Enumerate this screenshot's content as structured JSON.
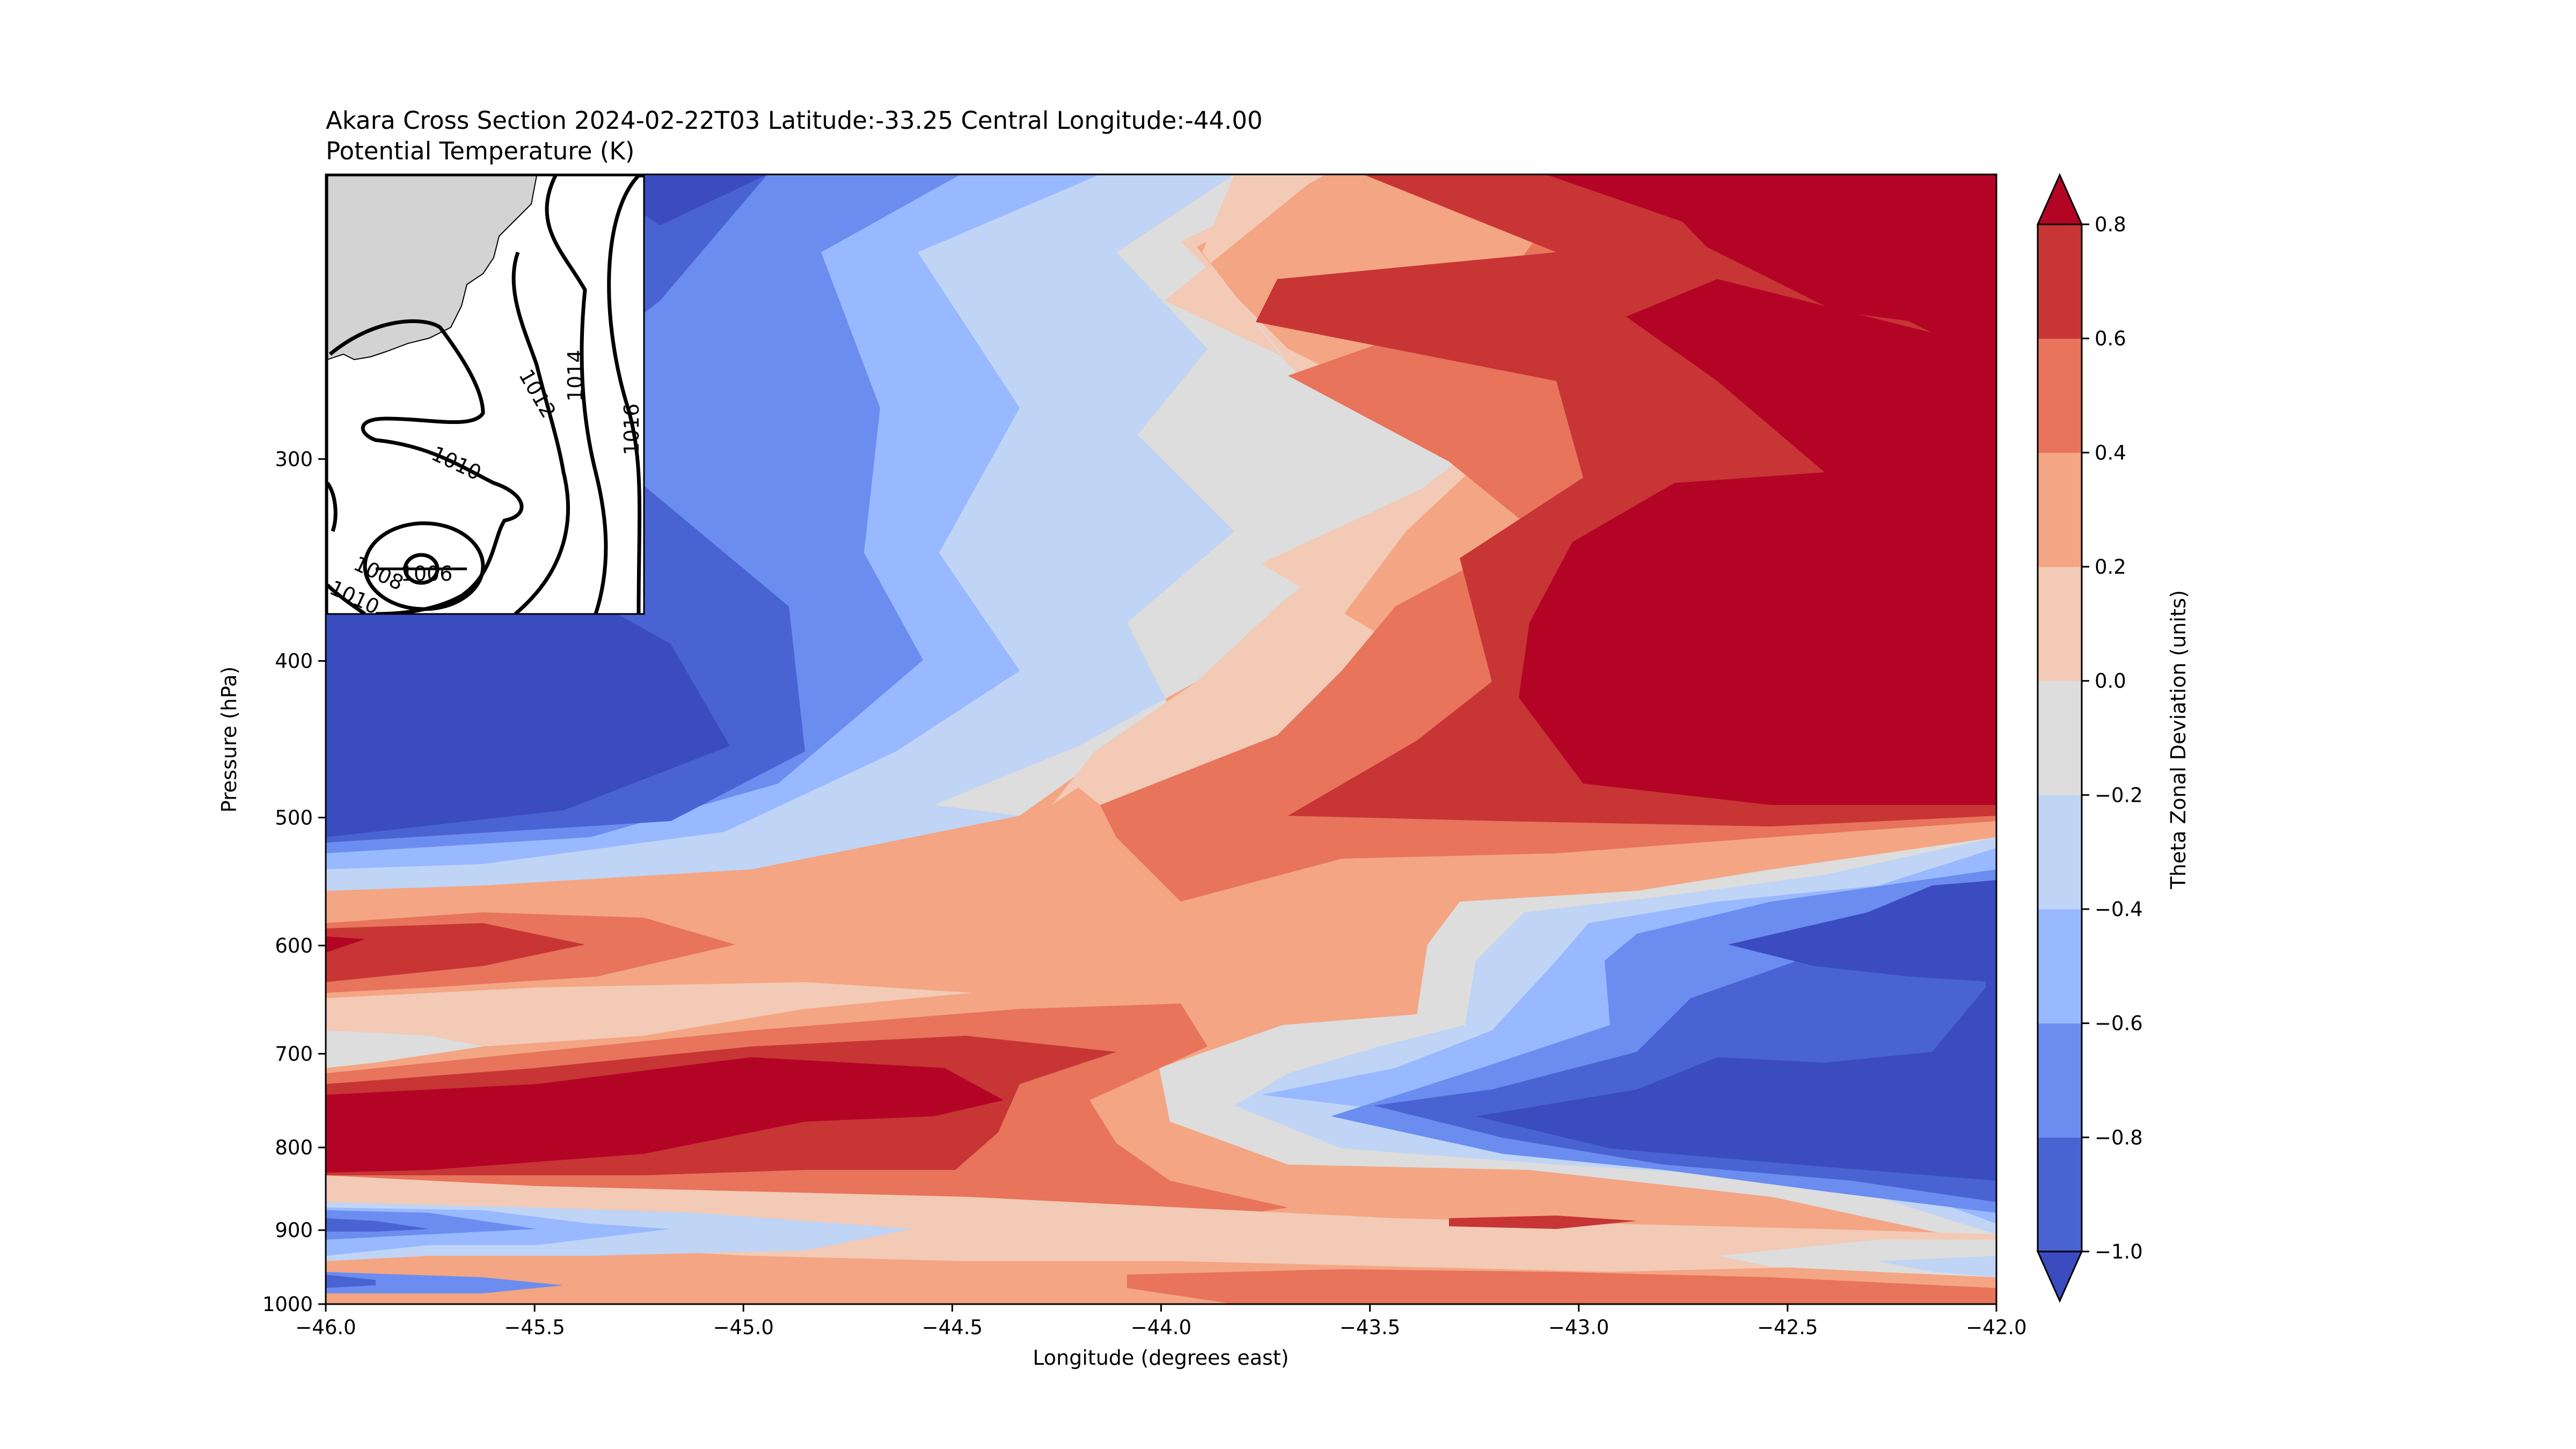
{
  "chart_data": {
    "type": "heatmap",
    "subtype": "filled-contour cross section",
    "title_line1": "Akara Cross Section 2024-02-22T03 Latitude:-33.25 Central Longitude:-44.00",
    "title_line2": "Potential Temperature (K)",
    "xlabel": "Longitude (degrees east)",
    "ylabel": "Pressure (hPa)",
    "xlim": [
      -46.0,
      -42.0
    ],
    "ylim": [
      1000,
      200
    ],
    "y_scale": "log",
    "x_ticks": [
      -46.0,
      -45.5,
      -45.0,
      -44.5,
      -44.0,
      -43.5,
      -43.0,
      -42.5,
      -42.0
    ],
    "x_tick_labels": [
      "−46.0",
      "−45.5",
      "−45.0",
      "−44.5",
      "−44.0",
      "−43.5",
      "−43.0",
      "−42.5",
      "−42.0"
    ],
    "y_ticks": [
      300,
      400,
      500,
      600,
      700,
      800,
      900,
      1000
    ],
    "y_tick_labels": [
      "300",
      "400",
      "500",
      "600",
      "700",
      "800",
      "900",
      "1000"
    ],
    "colorbar": {
      "label": "Theta Zonal Deviation (units)",
      "levels": [
        -1.0,
        -0.8,
        -0.6,
        -0.4,
        -0.2,
        0.0,
        0.2,
        0.4,
        0.6,
        0.8
      ],
      "tick_labels": [
        "−1.0",
        "−0.8",
        "−0.6",
        "−0.4",
        "−0.2",
        "0.0",
        "0.2",
        "0.4",
        "0.6",
        "0.8"
      ],
      "extend": "both",
      "colors": [
        "#3b4cc0",
        "#4a63d3",
        "#6b8df0",
        "#98b9ff",
        "#c0d4f5",
        "#dddddd",
        "#f2cab5",
        "#f4a584",
        "#e7745b",
        "#c73535",
        "#b40426"
      ]
    },
    "inset_map": {
      "isobar_labels": [
        "1006",
        "1008",
        "1010",
        "1010",
        "1012",
        "1014",
        "1016"
      ]
    }
  }
}
